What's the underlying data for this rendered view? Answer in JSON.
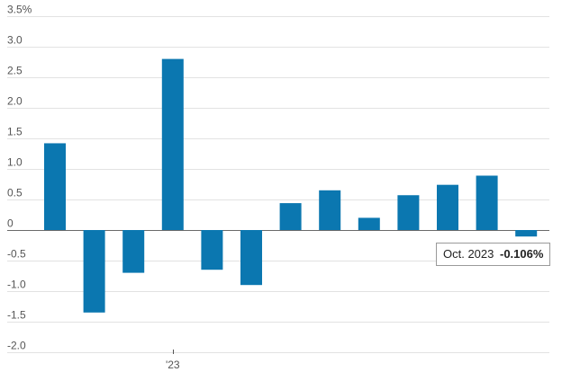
{
  "chart_data": {
    "type": "bar",
    "title": "",
    "xlabel": "",
    "ylabel": "",
    "ylim": [
      -2.0,
      3.5
    ],
    "y_ticks": [
      {
        "value": 3.5,
        "label": "3.5%"
      },
      {
        "value": 3.0,
        "label": "3.0"
      },
      {
        "value": 2.5,
        "label": "2.5"
      },
      {
        "value": 2.0,
        "label": "2.0"
      },
      {
        "value": 1.5,
        "label": "1.5"
      },
      {
        "value": 1.0,
        "label": "1.0"
      },
      {
        "value": 0.5,
        "label": "0.5"
      },
      {
        "value": 0,
        "label": "0"
      },
      {
        "value": -0.5,
        "label": "-0.5"
      },
      {
        "value": -1.0,
        "label": "-1.0"
      },
      {
        "value": -1.5,
        "label": "-1.5"
      },
      {
        "value": -2.0,
        "label": "-2.0"
      }
    ],
    "x_tick": {
      "index": 3,
      "label": "'23"
    },
    "values": [
      1.42,
      -1.35,
      -0.7,
      2.8,
      -0.65,
      -0.9,
      0.44,
      0.65,
      0.2,
      0.57,
      0.74,
      0.89,
      -0.106
    ],
    "bar_color": "#0b77b0",
    "grid": true,
    "tooltip": {
      "index": 12,
      "date": "Oct. 2023",
      "value": "-0.106%"
    }
  }
}
